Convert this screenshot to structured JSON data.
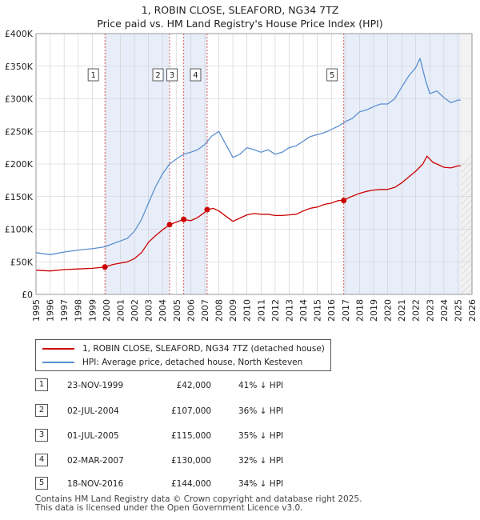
{
  "title": {
    "line1": "1, ROBIN CLOSE, SLEAFORD, NG34 7TZ",
    "line2": "Price paid vs. HM Land Registry's House Price Index (HPI)"
  },
  "colors": {
    "price_line": "#cc0000",
    "hpi_line": "#5b8fd0",
    "shade": "#e8eef9",
    "marker_line": "#e06060",
    "grid": "#cccccc"
  },
  "legend": {
    "price_label": "1, ROBIN CLOSE, SLEAFORD, NG34 7TZ (detached house)",
    "hpi_label": "HPI: Average price, detached house, North Kesteven"
  },
  "sales": [
    {
      "num": "1",
      "date": "23-NOV-1999",
      "price": "£42,000",
      "hpi": "41% ↓ HPI"
    },
    {
      "num": "2",
      "date": "02-JUL-2004",
      "price": "£107,000",
      "hpi": "36% ↓ HPI"
    },
    {
      "num": "3",
      "date": "01-JUL-2005",
      "price": "£115,000",
      "hpi": "35% ↓ HPI"
    },
    {
      "num": "4",
      "date": "02-MAR-2007",
      "price": "£130,000",
      "hpi": "32% ↓ HPI"
    },
    {
      "num": "5",
      "date": "18-NOV-2016",
      "price": "£144,000",
      "hpi": "34% ↓ HPI"
    }
  ],
  "footer": {
    "line1": "Contains HM Land Registry data © Crown copyright and database right 2025.",
    "line2": "This data is licensed under the Open Government Licence v3.0."
  },
  "chart_data": {
    "type": "line",
    "title": "1, ROBIN CLOSE, SLEAFORD, NG34 7TZ",
    "subtitle": "Price paid vs. HM Land Registry's House Price Index (HPI)",
    "xlabel": "",
    "ylabel": "",
    "xlim": [
      1995,
      2026
    ],
    "ylim": [
      0,
      400000
    ],
    "x_ticks": [
      1995,
      1996,
      1997,
      1998,
      1999,
      2000,
      2001,
      2002,
      2003,
      2004,
      2005,
      2006,
      2007,
      2008,
      2009,
      2010,
      2011,
      2012,
      2013,
      2014,
      2015,
      2016,
      2017,
      2018,
      2019,
      2020,
      2021,
      2022,
      2023,
      2024,
      2025,
      2026
    ],
    "y_ticks": [
      0,
      50000,
      100000,
      150000,
      200000,
      250000,
      300000,
      350000,
      400000
    ],
    "y_tick_labels": [
      "£0",
      "£50K",
      "£100K",
      "£150K",
      "£200K",
      "£250K",
      "£300K",
      "£350K",
      "£400K"
    ],
    "grid": true,
    "shaded_ranges": [
      [
        1999.9,
        2004.5
      ],
      [
        2005.5,
        2007.17
      ],
      [
        2016.88,
        2025.2
      ]
    ],
    "forecast_from": 2025.2,
    "sale_markers": [
      {
        "label": "1",
        "x": 1999.9,
        "y": 42000
      },
      {
        "label": "2",
        "x": 2004.5,
        "y": 107000
      },
      {
        "label": "3",
        "x": 2005.5,
        "y": 115000
      },
      {
        "label": "4",
        "x": 2007.17,
        "y": 130000
      },
      {
        "label": "5",
        "x": 2016.88,
        "y": 144000
      }
    ],
    "series": [
      {
        "name": "HPI: Average price, detached house, North Kesteven",
        "x": [
          1995,
          1996,
          1997,
          1998,
          1999,
          1999.9,
          2000.5,
          2001,
          2001.5,
          2002,
          2002.5,
          2003,
          2003.5,
          2004,
          2004.5,
          2005,
          2005.5,
          2006,
          2006.5,
          2007,
          2007.5,
          2008,
          2008.5,
          2009,
          2009.5,
          2010,
          2010.5,
          2011,
          2011.5,
          2012,
          2012.5,
          2013,
          2013.5,
          2014,
          2014.5,
          2015,
          2015.5,
          2016,
          2016.5,
          2017,
          2017.5,
          2018,
          2018.5,
          2019,
          2019.5,
          2020,
          2020.5,
          2021,
          2021.5,
          2022,
          2022.3,
          2022.7,
          2023,
          2023.5,
          2024,
          2024.5,
          2025,
          2025.2
        ],
        "y": [
          64000,
          61000,
          65000,
          68000,
          70000,
          73000,
          78000,
          82000,
          86000,
          97000,
          115000,
          140000,
          165000,
          185000,
          200000,
          208000,
          215000,
          218000,
          222000,
          230000,
          243000,
          250000,
          230000,
          210000,
          215000,
          225000,
          222000,
          218000,
          222000,
          215000,
          218000,
          225000,
          228000,
          235000,
          242000,
          245000,
          248000,
          253000,
          258000,
          265000,
          270000,
          280000,
          283000,
          288000,
          292000,
          292000,
          300000,
          318000,
          335000,
          348000,
          362000,
          328000,
          308000,
          312000,
          302000,
          294000,
          298000,
          298000
        ]
      },
      {
        "name": "1, ROBIN CLOSE, SLEAFORD, NG34 7TZ (detached house)",
        "x": [
          1995,
          1996,
          1997,
          1998,
          1999,
          1999.9,
          2000.5,
          2001,
          2001.5,
          2002,
          2002.5,
          2003,
          2003.5,
          2004,
          2004.5,
          2005,
          2005.5,
          2006,
          2006.5,
          2007,
          2007.17,
          2007.6,
          2008,
          2008.5,
          2009,
          2009.5,
          2010,
          2010.5,
          2011,
          2011.5,
          2012,
          2012.5,
          2013,
          2013.5,
          2014,
          2014.5,
          2015,
          2015.5,
          2016,
          2016.5,
          2016.88,
          2017.3,
          2018,
          2018.5,
          2019,
          2019.5,
          2020,
          2020.5,
          2021,
          2021.5,
          2022,
          2022.5,
          2022.8,
          2023.2,
          2023.7,
          2024,
          2024.5,
          2025,
          2025.2
        ],
        "y": [
          37000,
          36000,
          38000,
          39000,
          40000,
          42000,
          46000,
          48000,
          50000,
          55000,
          64000,
          80000,
          90000,
          99000,
          107000,
          111000,
          115000,
          113000,
          118000,
          126000,
          130000,
          132000,
          128000,
          120000,
          112000,
          117000,
          122000,
          124000,
          123000,
          123000,
          121000,
          121000,
          122000,
          123000,
          128000,
          132000,
          134000,
          138000,
          140000,
          144000,
          144000,
          149000,
          155000,
          158000,
          160000,
          161000,
          161000,
          164000,
          171000,
          180000,
          189000,
          200000,
          212000,
          203000,
          198000,
          195000,
          194000,
          197000,
          197000
        ]
      }
    ]
  }
}
